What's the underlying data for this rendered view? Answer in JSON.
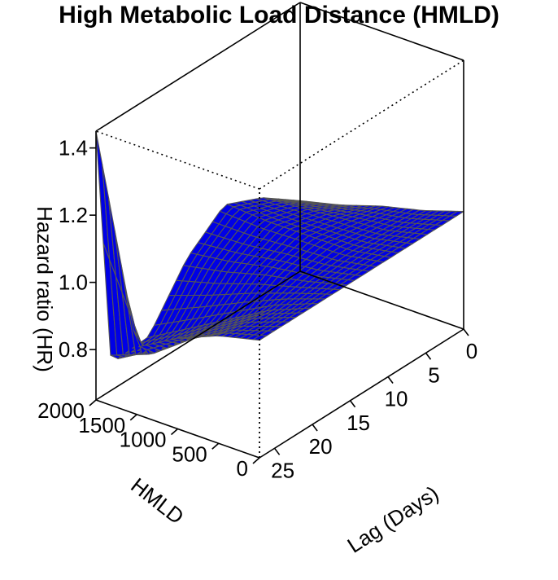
{
  "chart_data": {
    "type": "surface3d",
    "title": "High Metabolic Load Distance (HMLD)",
    "x_axis": {
      "label": "HMLD",
      "range": [
        0,
        2000
      ],
      "ticks": [
        "0",
        "500",
        "1000",
        "1500",
        "2000"
      ]
    },
    "y_axis": {
      "label": "Lag (Days)",
      "range": [
        0,
        27
      ],
      "ticks": [
        "0",
        "5",
        "10",
        "15",
        "20",
        "25"
      ]
    },
    "z_axis": {
      "label": "Hazard ratio (HR)",
      "range": [
        0.65,
        1.45
      ],
      "ticks": [
        "0.8",
        "1.0",
        "1.2",
        "1.4"
      ]
    },
    "surface": {
      "hmld": [
        0,
        500,
        1000,
        1500,
        2000
      ],
      "lag": [
        0,
        5,
        10,
        15,
        20,
        25,
        27
      ],
      "hr": [
        [
          1.0,
          1.0,
          1.0,
          1.0,
          1.0,
          1.0,
          1.0
        ],
        [
          0.96,
          0.97,
          0.98,
          0.97,
          0.95,
          0.96,
          0.97
        ],
        [
          0.93,
          0.96,
          0.98,
          0.95,
          0.88,
          0.89,
          0.92
        ],
        [
          0.89,
          0.95,
          0.98,
          0.92,
          0.81,
          0.8,
          0.85
        ],
        [
          0.86,
          0.94,
          0.99,
          0.9,
          0.74,
          0.73,
          1.45
        ]
      ]
    },
    "surface_color": "#0000e6",
    "mesh_color": "#555555",
    "box_color": "#000000",
    "grid": false
  }
}
